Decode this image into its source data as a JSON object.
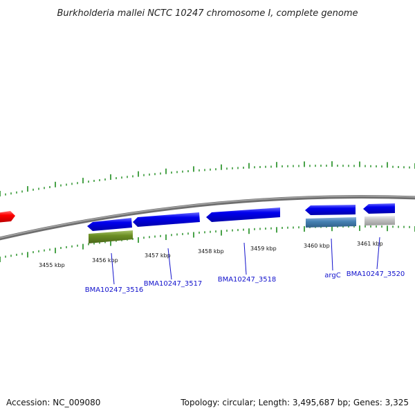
{
  "title": "Burkholderia mallei NCTC 10247 chromosome I, complete genome",
  "footer": {
    "accession": "Accession: NC_009080",
    "summary": "Topology: circular; Length: 3,495,687 bp; Genes: 3,325"
  },
  "colors": {
    "backbone": "#808080",
    "tick": "#1a8a1a",
    "cds_forward": "#0000ee",
    "cds_reverse": "#0000ee",
    "cds_other": "#ff0000",
    "feature_olive": "#6b8e23",
    "feature_steel": "#4682b4",
    "feature_gray": "#c0c0c0",
    "label": "#1010cc"
  },
  "scale": {
    "tick_labels": [
      "3455 kbp",
      "3456 kbp",
      "3457 kbp",
      "3458 kbp",
      "3459 kbp",
      "3460 kbp",
      "3461 kbp"
    ]
  },
  "genes": [
    {
      "label": "BMA10247_3516"
    },
    {
      "label": "BMA10247_3517"
    },
    {
      "label": "BMA10247_3518"
    },
    {
      "label": "argC"
    },
    {
      "label": "BMA10247_3520"
    }
  ]
}
